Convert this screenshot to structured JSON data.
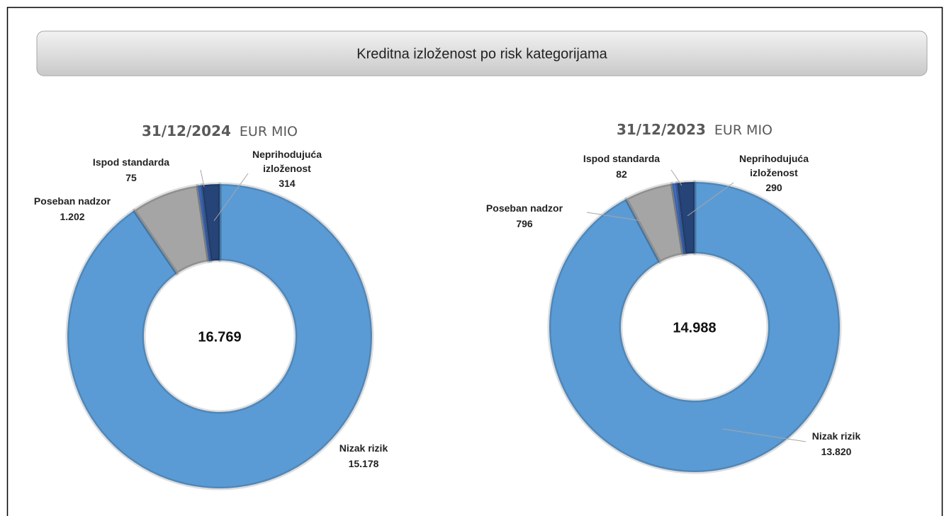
{
  "title": "Kreditna izloženost po risk kategorijama",
  "chart_data": [
    {
      "type": "donut",
      "title": "31/12/2024",
      "subtitle": "EUR MIO",
      "center_label": "16.769",
      "categories": [
        "Nizak rizik",
        "Poseban nadzor",
        "Ispod standarda",
        "Neprihodujuća izloženost"
      ],
      "values": [
        15178,
        1202,
        75,
        314
      ],
      "value_labels": [
        "15.178",
        "1.202",
        "75",
        "314"
      ],
      "colors": [
        "#5b9bd5",
        "#a5a5a5",
        "#4472c4",
        "#264478"
      ]
    },
    {
      "type": "donut",
      "title": "31/12/2023",
      "subtitle": "EUR MIO",
      "center_label": "14.988",
      "categories": [
        "Nizak rizik",
        "Poseban nadzor",
        "Ispod standarda",
        "Neprihodujuća izloženost"
      ],
      "values": [
        13820,
        796,
        82,
        290
      ],
      "value_labels": [
        "13.820",
        "796",
        "82",
        "290"
      ],
      "colors": [
        "#5b9bd5",
        "#a5a5a5",
        "#4472c4",
        "#264478"
      ]
    }
  ]
}
